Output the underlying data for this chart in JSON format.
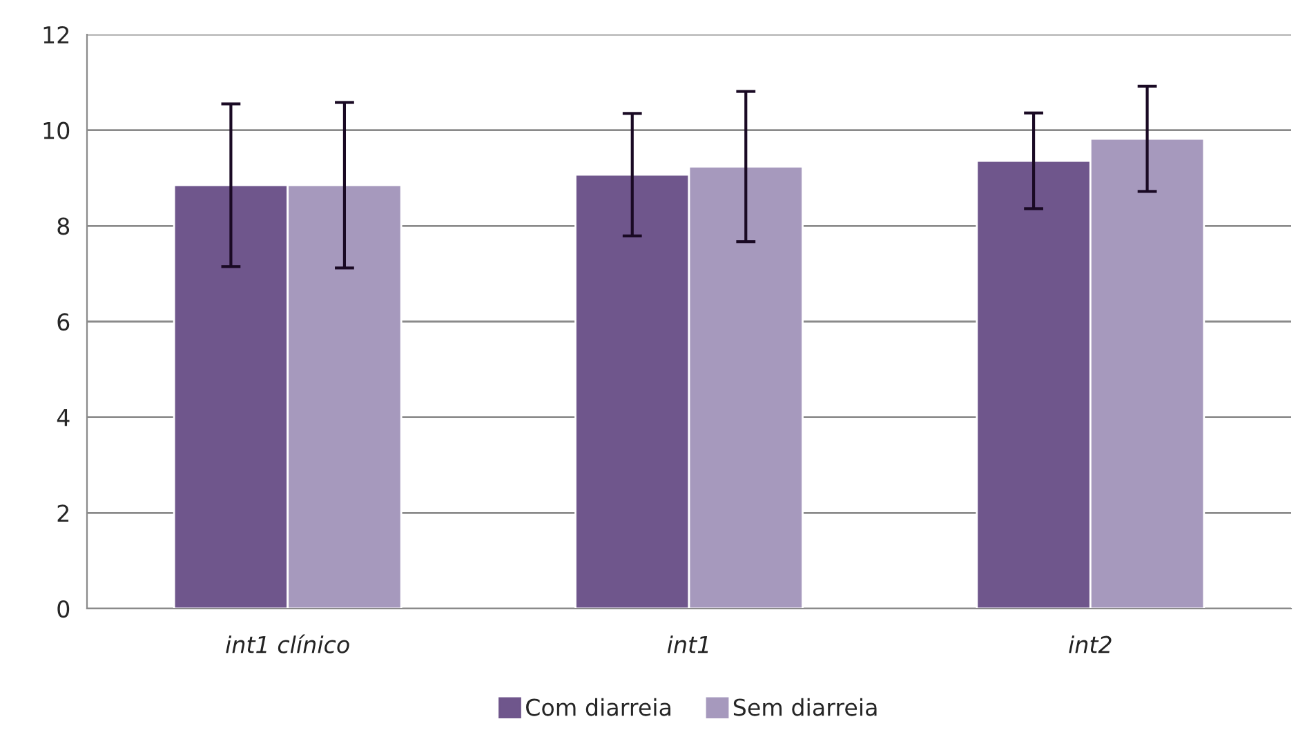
{
  "chart_data": {
    "type": "bar",
    "categories": [
      "int1 clínico",
      "int1",
      "int2"
    ],
    "series": [
      {
        "name": "Com diarreia",
        "color": "#6f568c",
        "values": [
          8.85,
          9.07,
          9.36
        ],
        "errors": [
          1.7,
          1.28,
          1.0
        ]
      },
      {
        "name": "Sem diarreia",
        "color": "#a699bd",
        "values": [
          8.85,
          9.24,
          9.82
        ],
        "errors": [
          1.73,
          1.57,
          1.1
        ]
      }
    ],
    "ylim": [
      0,
      12
    ],
    "yticks": [
      0,
      2,
      4,
      6,
      8,
      10,
      12
    ],
    "grid": "y",
    "legend": "bottom"
  }
}
